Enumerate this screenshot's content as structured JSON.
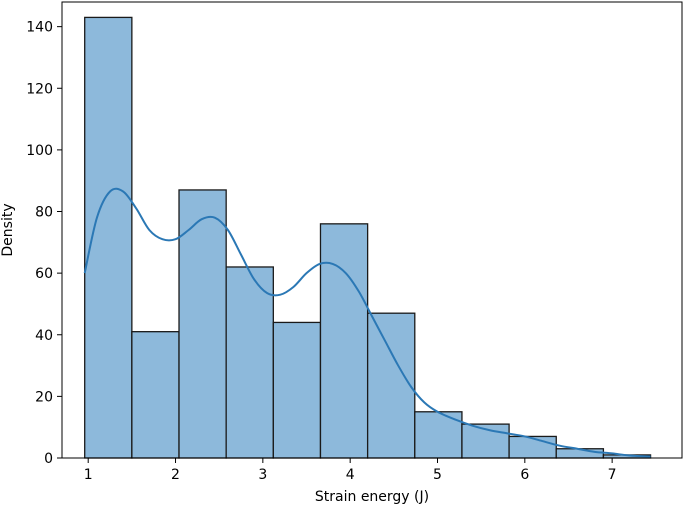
{
  "chart_data": {
    "type": "bar",
    "title": "",
    "xlabel": "Strain energy (J)",
    "ylabel": "Density",
    "xlim": [
      0.7,
      7.8
    ],
    "ylim": [
      0,
      148
    ],
    "xticks": [
      1,
      2,
      3,
      4,
      5,
      6,
      7
    ],
    "yticks": [
      0,
      20,
      40,
      60,
      80,
      100,
      120,
      140
    ],
    "grid": false,
    "legend": "none",
    "colors": {
      "bar_fill": "#8db9db",
      "bar_edge": "#1a1a1a",
      "kde_line": "#2b78b5",
      "axis": "#000000"
    },
    "histogram": {
      "bin_edges": [
        0.96,
        1.5,
        2.04,
        2.58,
        3.12,
        3.66,
        4.2,
        4.74,
        5.28,
        5.82,
        6.36,
        6.9,
        7.44
      ],
      "counts": [
        143,
        41,
        87,
        62,
        44,
        76,
        47,
        15,
        11,
        7,
        3,
        1
      ]
    },
    "kde": {
      "x": [
        0.96,
        1.1,
        1.25,
        1.4,
        1.55,
        1.7,
        1.85,
        2.0,
        2.15,
        2.3,
        2.45,
        2.6,
        2.75,
        2.9,
        3.05,
        3.2,
        3.35,
        3.5,
        3.65,
        3.8,
        3.95,
        4.1,
        4.25,
        4.4,
        4.55,
        4.7,
        4.85,
        5.0,
        5.2,
        5.4,
        5.6,
        5.8,
        6.0,
        6.2,
        6.4,
        6.6,
        6.8,
        7.0,
        7.2,
        7.44
      ],
      "y": [
        60,
        78,
        86.5,
        86.5,
        81,
        74,
        71,
        71,
        74,
        77.5,
        78,
        74,
        66,
        58,
        53.5,
        53,
        55.5,
        60,
        63,
        63,
        60,
        54,
        46,
        38,
        30,
        23,
        18,
        15,
        12.5,
        10.5,
        9,
        8,
        7,
        5.5,
        4,
        3,
        2,
        1.5,
        0.8,
        0.5
      ]
    }
  }
}
